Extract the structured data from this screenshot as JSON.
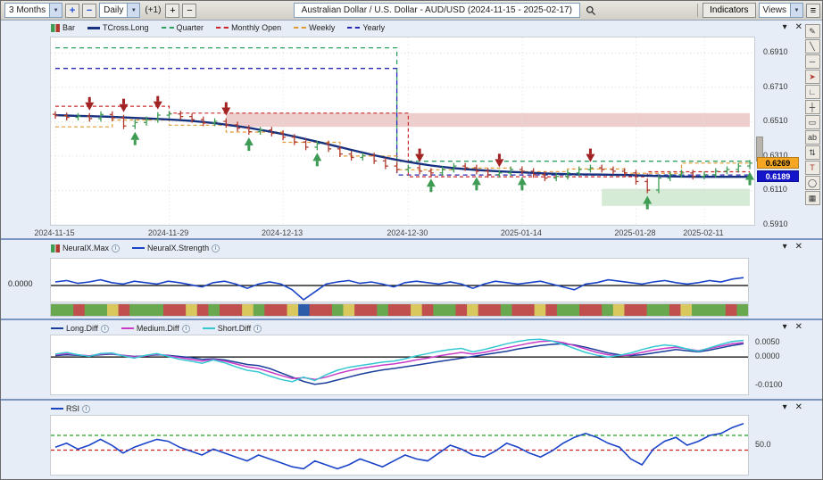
{
  "icons": {
    "dropdown_arrow": "▼",
    "collapse_arrow": "▾",
    "close": "✕",
    "plus": "+",
    "minus": "−",
    "menu": "≡",
    "info": "i"
  },
  "toolbar": {
    "range_value": "3 Months",
    "interval_value": "Daily",
    "offset_label": "(+1)",
    "title": "Australian Dollar / U.S. Dollar - AUD/USD (2024-11-15 - 2025-02-17)",
    "indicators_button": "Indicators",
    "views_button": "Views"
  },
  "right_toolbar": {
    "tools": [
      {
        "name": "pencil-tool-icon",
        "glyph": "✎"
      },
      {
        "name": "trendline-tool-icon",
        "glyph": "╲"
      },
      {
        "name": "horizontal-line-tool-icon",
        "glyph": "─"
      },
      {
        "name": "arrow-tool-icon",
        "glyph": "➤",
        "color": "#b03a2e"
      },
      {
        "name": "angle-tool-icon",
        "glyph": "∟"
      },
      {
        "name": "crosshair-tool-icon",
        "glyph": "┼"
      },
      {
        "name": "callout-tool-icon",
        "glyph": "▭"
      },
      {
        "name": "annotation-tool-icon",
        "glyph": "ab"
      },
      {
        "name": "expand-tool-icon",
        "glyph": "⇅"
      },
      {
        "name": "text-tool-icon",
        "glyph": "T",
        "color": "#b03a2e"
      },
      {
        "name": "ellipse-tool-icon",
        "glyph": "◯"
      },
      {
        "name": "grid-tool-icon",
        "glyph": "▦"
      }
    ]
  },
  "main_chart": {
    "legend": [
      {
        "label": "Bar"
      },
      {
        "label": "TCross.Long"
      },
      {
        "label": "Quarter"
      },
      {
        "label": "Monthly Open"
      },
      {
        "label": "Weekly"
      },
      {
        "label": "Yearly"
      }
    ],
    "price_tags": [
      {
        "text": "0.6269",
        "price": 0.6269,
        "bg": "#f5a623",
        "fg": "#000000"
      },
      {
        "text": "0.6189",
        "price": 0.6189,
        "bg": "#1414c8",
        "fg": "#ffffff"
      }
    ]
  },
  "panels": {
    "neuralx": {
      "legend": [
        {
          "label": "NeuralX.Max"
        },
        {
          "label": "NeuralX.Strength"
        }
      ],
      "zero_label": "0.0000"
    },
    "diff": {
      "legend": [
        {
          "label": "Long.Diff"
        },
        {
          "label": "Medium.Diff"
        },
        {
          "label": "Short.Diff"
        }
      ],
      "axis_labels": [
        {
          "text": "0.0050",
          "value": 0.005
        },
        {
          "text": "0.0000",
          "value": 0.0
        },
        {
          "text": "-0.0100",
          "value": -0.01
        }
      ]
    },
    "rsi": {
      "legend": [
        {
          "label": "RSI"
        }
      ],
      "axis_labels": [
        {
          "text": "50.0",
          "value": 50
        }
      ]
    }
  },
  "colors": {
    "tcross": "#17317f",
    "quarter": "#2fa05f",
    "monthly_open": "#cc2a2a",
    "weekly": "#e09a30",
    "yearly": "#2828b4",
    "bar_up": "#3f9c55",
    "bar_down": "#b03a2e",
    "arrow_up": "#3f9c55",
    "arrow_down": "#a22323",
    "strength": "#1a43c8",
    "long_diff": "#1a3e9c",
    "medium_diff": "#c83cc8",
    "short_diff": "#35c8d2",
    "rsi": "#1a43c8",
    "block_colors": {
      "g": "#6aa84f",
      "r": "#c0504d",
      "y": "#d8c85e",
      "b": "#2a5caa"
    }
  },
  "chart_data": {
    "type": "ohlc-with-indicators",
    "symbol": "AUD/USD",
    "date_range": [
      "2024-11-15",
      "2025-02-17"
    ],
    "x_tick_dates": [
      "2024-11-15",
      "2024-11-29",
      "2024-12-13",
      "2024-12-30",
      "2025-01-14",
      "2025-01-28",
      "2025-02-11"
    ],
    "x_tick_indices": [
      0,
      10,
      20,
      31,
      41,
      51,
      57
    ],
    "y_ticks": [
      0.691,
      0.671,
      0.651,
      0.631,
      0.611,
      0.591
    ],
    "price_range": [
      0.7,
      0.591
    ],
    "closes": [
      0.6545,
      0.6535,
      0.6542,
      0.6528,
      0.6552,
      0.6532,
      0.6485,
      0.6505,
      0.6522,
      0.6548,
      0.6555,
      0.654,
      0.6522,
      0.6502,
      0.6512,
      0.6492,
      0.6472,
      0.6452,
      0.6462,
      0.6442,
      0.642,
      0.6392,
      0.6362,
      0.6382,
      0.6352,
      0.6322,
      0.6302,
      0.6312,
      0.6282,
      0.6252,
      0.6232,
      0.6242,
      0.6222,
      0.6212,
      0.6232,
      0.6252,
      0.6242,
      0.6222,
      0.6202,
      0.6212,
      0.6232,
      0.6222,
      0.6202,
      0.6182,
      0.6192,
      0.6212,
      0.6232,
      0.6242,
      0.6232,
      0.6222,
      0.6212,
      0.6162,
      0.6112,
      0.6182,
      0.6202,
      0.6212,
      0.6192,
      0.6202,
      0.6222,
      0.6232,
      0.6252,
      0.6269
    ],
    "tcross_long": [
      0.6548,
      0.6546,
      0.6544,
      0.6542,
      0.654,
      0.6538,
      0.6535,
      0.6532,
      0.6529,
      0.6526,
      0.6523,
      0.6519,
      0.6514,
      0.6508,
      0.6501,
      0.6493,
      0.6484,
      0.6474,
      0.6463,
      0.6451,
      0.6438,
      0.6424,
      0.6409,
      0.6394,
      0.6378,
      0.6362,
      0.6346,
      0.633,
      0.6315,
      0.6301,
      0.6288,
      0.6276,
      0.6265,
      0.6255,
      0.6247,
      0.624,
      0.6234,
      0.6229,
      0.6225,
      0.6221,
      0.6218,
      0.6215,
      0.6212,
      0.6209,
      0.6207,
      0.6205,
      0.6204,
      0.6203,
      0.6202,
      0.6201,
      0.62,
      0.6198,
      0.6196,
      0.6194,
      0.6192,
      0.6191,
      0.619,
      0.6189,
      0.6189,
      0.6189,
      0.6189,
      0.6189
    ],
    "quarter_points": [
      [
        0,
        0.694
      ],
      [
        30,
        0.694
      ],
      [
        30,
        0.628
      ],
      [
        61,
        0.628
      ]
    ],
    "yearly_points": [
      [
        0,
        0.682
      ],
      [
        30,
        0.682
      ],
      [
        30,
        0.62
      ],
      [
        61,
        0.62
      ]
    ],
    "monthly_open_points": [
      [
        0,
        0.66
      ],
      [
        10,
        0.66
      ],
      [
        10,
        0.656
      ],
      [
        31,
        0.656
      ],
      [
        31,
        0.619
      ],
      [
        52,
        0.619
      ],
      [
        52,
        0.6219
      ],
      [
        61,
        0.6219
      ]
    ],
    "weekly_points": [
      [
        0,
        0.648
      ],
      [
        5,
        0.648
      ],
      [
        5,
        0.652
      ],
      [
        10,
        0.652
      ],
      [
        10,
        0.649
      ],
      [
        15,
        0.649
      ],
      [
        15,
        0.645
      ],
      [
        20,
        0.645
      ],
      [
        20,
        0.639
      ],
      [
        25,
        0.639
      ],
      [
        25,
        0.631
      ],
      [
        30,
        0.631
      ],
      [
        30,
        0.623
      ],
      [
        35,
        0.623
      ],
      [
        35,
        0.624
      ],
      [
        40,
        0.624
      ],
      [
        40,
        0.622
      ],
      [
        45,
        0.622
      ],
      [
        45,
        0.6235
      ],
      [
        50,
        0.6235
      ],
      [
        50,
        0.621
      ],
      [
        55,
        0.621
      ],
      [
        55,
        0.6269
      ],
      [
        61,
        0.6269
      ]
    ],
    "arrows": [
      {
        "i": 3,
        "dir": "down"
      },
      {
        "i": 6,
        "dir": "down"
      },
      {
        "i": 9,
        "dir": "down"
      },
      {
        "i": 15,
        "dir": "down"
      },
      {
        "i": 32,
        "dir": "down"
      },
      {
        "i": 39,
        "dir": "down"
      },
      {
        "i": 47,
        "dir": "down"
      },
      {
        "i": 7,
        "dir": "up"
      },
      {
        "i": 17,
        "dir": "up"
      },
      {
        "i": 23,
        "dir": "up"
      },
      {
        "i": 33,
        "dir": "up"
      },
      {
        "i": 37,
        "dir": "up"
      },
      {
        "i": 41,
        "dir": "up"
      },
      {
        "i": 52,
        "dir": "up"
      },
      {
        "i": 61,
        "dir": "up"
      }
    ],
    "bands": [
      {
        "from": 15,
        "to": 61,
        "top": 0.656,
        "bottom": 0.648,
        "color": "rgba(192,80,77,0.28)"
      },
      {
        "from": 48,
        "to": 61,
        "top": 0.612,
        "bottom": 0.602,
        "color": "rgba(120,190,120,0.30)"
      }
    ],
    "neuralx_strength": [
      0.25,
      0.35,
      0.15,
      0.25,
      0.4,
      0.2,
      0.1,
      0.3,
      0.2,
      0.1,
      0.3,
      0.2,
      0.05,
      -0.1,
      0.2,
      0.3,
      0.1,
      -0.2,
      0.1,
      0.25,
      0.1,
      -0.3,
      -1.0,
      -0.45,
      0.1,
      0.25,
      0.35,
      0.15,
      0.25,
      0.1,
      -0.1,
      0.2,
      0.3,
      0.2,
      0.1,
      0.25,
      0.1,
      -0.2,
      0.1,
      0.3,
      0.2,
      0.1,
      0.2,
      0.3,
      0.1,
      -0.1,
      -0.3,
      0.1,
      0.2,
      0.4,
      0.3,
      0.2,
      0.1,
      0.25,
      0.35,
      0.2,
      0.1,
      0.2,
      0.35,
      0.25,
      0.45,
      0.55
    ],
    "neuralx_blocks": [
      "g",
      "g",
      "r",
      "g",
      "g",
      "y",
      "r",
      "g",
      "g",
      "g",
      "r",
      "r",
      "y",
      "r",
      "g",
      "r",
      "r",
      "y",
      "g",
      "r",
      "r",
      "y",
      "b",
      "r",
      "r",
      "g",
      "y",
      "r",
      "r",
      "g",
      "r",
      "r",
      "y",
      "r",
      "g",
      "g",
      "r",
      "y",
      "r",
      "r",
      "g",
      "r",
      "r",
      "y",
      "r",
      "g",
      "g",
      "r",
      "r",
      "g",
      "y",
      "r",
      "r",
      "g",
      "g",
      "r",
      "y",
      "g",
      "g",
      "g",
      "r",
      "g"
    ],
    "diff_range": [
      0.0075,
      -0.013
    ],
    "long_diff": [
      0.0005,
      0.0008,
      0.0006,
      0.0004,
      0.0008,
      0.001,
      0.0006,
      0.0002,
      0.0004,
      0.0008,
      0.0006,
      0.0002,
      -0.0002,
      -0.0008,
      -0.0006,
      -0.001,
      -0.0018,
      -0.0026,
      -0.003,
      -0.004,
      -0.0055,
      -0.007,
      -0.0085,
      -0.0095,
      -0.009,
      -0.008,
      -0.007,
      -0.006,
      -0.0052,
      -0.0045,
      -0.004,
      -0.0034,
      -0.0028,
      -0.0022,
      -0.0016,
      -0.001,
      -0.0004,
      0.0002,
      0.0008,
      0.0014,
      0.002,
      0.0028,
      0.0034,
      0.004,
      0.0044,
      0.0046,
      0.0042,
      0.0034,
      0.0024,
      0.0014,
      0.0008,
      0.0005,
      0.0008,
      0.0014,
      0.002,
      0.0026,
      0.0022,
      0.0018,
      0.0024,
      0.0032,
      0.004,
      0.0046
    ],
    "medium_diff": [
      0.0008,
      0.0012,
      0.0008,
      0.0004,
      0.001,
      0.0012,
      0.0006,
      0.0,
      0.0004,
      0.001,
      0.0004,
      -0.0002,
      -0.0008,
      -0.0014,
      -0.0008,
      -0.0014,
      -0.0024,
      -0.0034,
      -0.004,
      -0.0052,
      -0.0064,
      -0.0075,
      -0.0072,
      -0.0078,
      -0.007,
      -0.0058,
      -0.0048,
      -0.004,
      -0.0034,
      -0.0028,
      -0.0024,
      -0.0018,
      -0.001,
      -0.0004,
      0.0004,
      0.001,
      0.0016,
      0.001,
      0.0016,
      0.0024,
      0.0032,
      0.004,
      0.0048,
      0.0054,
      0.0056,
      0.005,
      0.004,
      0.0028,
      0.0016,
      0.0008,
      0.0004,
      0.0008,
      0.0016,
      0.0024,
      0.003,
      0.0034,
      0.0028,
      0.0022,
      0.003,
      0.0038,
      0.0046,
      0.005
    ],
    "short_diff": [
      0.001,
      0.0016,
      0.0008,
      0.0002,
      0.0012,
      0.0014,
      0.0004,
      -0.0004,
      0.0006,
      0.0012,
      0.0002,
      -0.0008,
      -0.0014,
      -0.0022,
      -0.001,
      -0.002,
      -0.0034,
      -0.0046,
      -0.0052,
      -0.0066,
      -0.0078,
      -0.0086,
      -0.007,
      -0.0082,
      -0.0062,
      -0.0046,
      -0.0036,
      -0.003,
      -0.0024,
      -0.0018,
      -0.0014,
      -0.0006,
      0.0004,
      0.0012,
      0.002,
      0.0026,
      0.003,
      0.0018,
      0.0026,
      0.0036,
      0.0046,
      0.0054,
      0.006,
      0.0062,
      0.0056,
      0.0044,
      0.003,
      0.0016,
      0.0006,
      0.0,
      0.0006,
      0.0014,
      0.0026,
      0.0036,
      0.0042,
      0.0038,
      0.0028,
      0.002,
      0.0032,
      0.0044,
      0.0054,
      0.0058
    ],
    "rsi_range": [
      80,
      20
    ],
    "rsi_overbought": 60,
    "rsi_oversold": 45,
    "rsi": [
      48,
      52,
      46,
      50,
      56,
      50,
      42,
      48,
      52,
      56,
      54,
      48,
      44,
      40,
      46,
      42,
      38,
      34,
      40,
      36,
      32,
      28,
      26,
      34,
      30,
      26,
      30,
      36,
      32,
      28,
      34,
      40,
      36,
      34,
      42,
      50,
      46,
      40,
      38,
      44,
      52,
      48,
      42,
      38,
      44,
      52,
      58,
      62,
      58,
      52,
      48,
      36,
      30,
      46,
      54,
      58,
      50,
      54,
      60,
      62,
      68,
      72
    ]
  }
}
